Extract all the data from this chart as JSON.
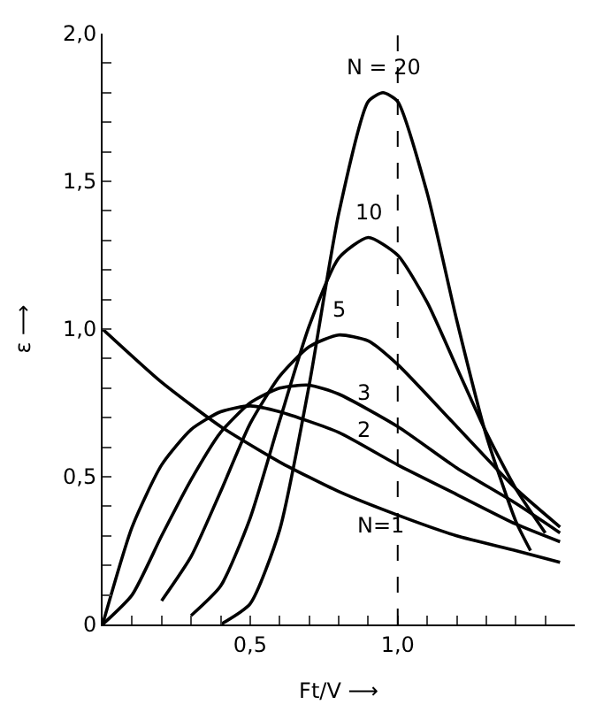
{
  "chart_data": {
    "type": "line",
    "xlabel": "Ft/V ⟶",
    "ylabel": "ε ⟶",
    "x": [
      0,
      0.1,
      0.2,
      0.3,
      0.4,
      0.5,
      0.6,
      0.7,
      0.8,
      0.9,
      0.95,
      1.0,
      1.1,
      1.2,
      1.3,
      1.4,
      1.45,
      1.5,
      1.55
    ],
    "series": [
      {
        "name": "N = 20",
        "color": "#000000",
        "values": [
          null,
          null,
          null,
          null,
          0,
          0.07,
          0.32,
          0.81,
          1.39,
          1.77,
          1.8,
          1.77,
          1.46,
          1.03,
          0.64,
          0.35,
          0.25,
          null,
          null
        ]
      },
      {
        "name": "10",
        "color": "#000000",
        "values": [
          null,
          null,
          null,
          0.03,
          0.13,
          0.36,
          0.69,
          1.01,
          1.24,
          1.31,
          null,
          1.25,
          1.09,
          0.87,
          0.65,
          0.46,
          null,
          0.31,
          null
        ]
      },
      {
        "name": "5",
        "color": "#000000",
        "values": [
          null,
          null,
          0.08,
          0.23,
          0.45,
          0.68,
          0.84,
          0.94,
          0.98,
          0.96,
          null,
          0.88,
          null,
          0.67,
          null,
          0.46,
          null,
          null,
          0.33
        ]
      },
      {
        "name": "3",
        "color": "#000000",
        "values": [
          0,
          0.1,
          0.3,
          0.49,
          0.65,
          0.75,
          0.8,
          0.81,
          0.78,
          null,
          null,
          0.67,
          null,
          0.53,
          null,
          0.41,
          null,
          null,
          0.31
        ]
      },
      {
        "name": "2",
        "color": "#000000",
        "values": [
          0,
          0.33,
          0.54,
          0.66,
          0.72,
          0.74,
          0.72,
          null,
          0.65,
          null,
          null,
          0.54,
          null,
          0.44,
          null,
          0.34,
          null,
          null,
          0.28
        ]
      },
      {
        "name": "N=1",
        "color": "#000000",
        "values": [
          1.0,
          null,
          0.82,
          null,
          0.67,
          null,
          0.55,
          null,
          0.45,
          null,
          null,
          0.37,
          null,
          0.3,
          null,
          0.25,
          null,
          null,
          0.21
        ]
      }
    ],
    "xlim": [
      0,
      1.6
    ],
    "ylim": [
      0,
      2.0
    ],
    "xticks": [
      {
        "value": 0,
        "label": null
      },
      {
        "value": 0.1,
        "label": null
      },
      {
        "value": 0.2,
        "label": null
      },
      {
        "value": 0.3,
        "label": null
      },
      {
        "value": 0.4,
        "label": null
      },
      {
        "value": 0.5,
        "label": "0,5"
      },
      {
        "value": 0.6,
        "label": null
      },
      {
        "value": 0.7,
        "label": null
      },
      {
        "value": 0.8,
        "label": null
      },
      {
        "value": 0.9,
        "label": null
      },
      {
        "value": 1.0,
        "label": "1,0"
      },
      {
        "value": 1.1,
        "label": null
      },
      {
        "value": 1.2,
        "label": null
      },
      {
        "value": 1.3,
        "label": null
      },
      {
        "value": 1.4,
        "label": null
      },
      {
        "value": 1.5,
        "label": null
      }
    ],
    "yticks": [
      0,
      {
        "value": 0.1,
        "label": null
      },
      {
        "value": 0.2,
        "label": null
      },
      {
        "value": 0.3,
        "label": null
      },
      {
        "value": 0.4,
        "label": null
      },
      {
        "value": 0.5,
        "label": "0,5"
      },
      {
        "value": 0.6,
        "label": null
      },
      {
        "value": 0.7,
        "label": null
      },
      {
        "value": 0.8,
        "label": null
      },
      {
        "value": 0.9,
        "label": null
      },
      {
        "value": 1.0,
        "label": "1,0"
      },
      {
        "value": 1.1,
        "label": null
      },
      {
        "value": 1.2,
        "label": null
      },
      {
        "value": 1.3,
        "label": null
      },
      {
        "value": 1.4,
        "label": null
      },
      {
        "value": 1.5,
        "label": "1,5"
      },
      {
        "value": 1.6,
        "label": null
      },
      {
        "value": 1.7,
        "label": null
      },
      {
        "value": 1.8,
        "label": null
      },
      {
        "value": 1.9,
        "label": null
      },
      {
        "value": 2.0,
        "label": "2,0"
      }
    ],
    "ref_lines": [
      {
        "axis": "x",
        "value": 1.0,
        "line_style": "dashed"
      }
    ],
    "marker": "none",
    "line_style": "solid"
  }
}
